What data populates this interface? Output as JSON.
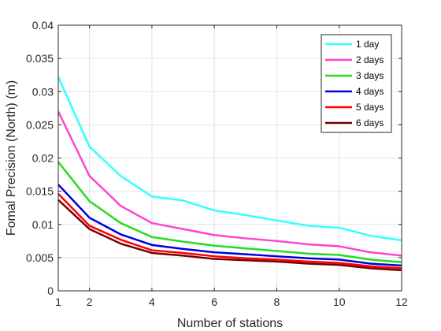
{
  "chart_data": {
    "type": "line",
    "title": "",
    "xlabel": "Number of stations",
    "ylabel": "Fomal Precision (North) (m)",
    "xlim": [
      1,
      12
    ],
    "ylim": [
      0,
      0.04
    ],
    "xticks": [
      1,
      2,
      4,
      6,
      8,
      10,
      12
    ],
    "yticks": [
      0,
      0.005,
      0.01,
      0.015,
      0.02,
      0.025,
      0.03,
      0.035,
      0.04
    ],
    "xtick_labels": [
      "1",
      "2",
      "4",
      "6",
      "8",
      "10",
      "12"
    ],
    "ytick_labels": [
      "0",
      "0.005",
      "0.01",
      "0.015",
      "0.02",
      "0.025",
      "0.03",
      "0.035",
      "0.04"
    ],
    "grid": true,
    "legend_position": "top-right",
    "x": [
      1,
      2,
      3,
      4,
      5,
      6,
      7,
      8,
      9,
      10,
      11,
      12
    ],
    "series": [
      {
        "name": "1 day",
        "color": "#33FFFF",
        "values": [
          0.0322,
          0.0217,
          0.0173,
          0.0142,
          0.0136,
          0.0121,
          0.0114,
          0.0106,
          0.0098,
          0.0095,
          0.0083,
          0.0076
        ]
      },
      {
        "name": "2 days",
        "color": "#FF44CC",
        "values": [
          0.027,
          0.0173,
          0.0128,
          0.0102,
          0.0093,
          0.0084,
          0.0079,
          0.0075,
          0.007,
          0.0067,
          0.0058,
          0.0053
        ]
      },
      {
        "name": "3 days",
        "color": "#22DD22",
        "values": [
          0.0194,
          0.0135,
          0.0102,
          0.0081,
          0.0074,
          0.0068,
          0.0064,
          0.006,
          0.0056,
          0.0054,
          0.0047,
          0.0043
        ]
      },
      {
        "name": "4 days",
        "color": "#0000DD",
        "values": [
          0.016,
          0.011,
          0.0085,
          0.0069,
          0.0063,
          0.0058,
          0.0055,
          0.0052,
          0.0049,
          0.0047,
          0.0041,
          0.0038
        ]
      },
      {
        "name": "5 days",
        "color": "#FF0000",
        "values": [
          0.0146,
          0.0098,
          0.0077,
          0.0061,
          0.0057,
          0.0052,
          0.0049,
          0.0047,
          0.0044,
          0.0042,
          0.0037,
          0.0034
        ]
      },
      {
        "name": "6 days",
        "color": "#770000",
        "values": [
          0.0137,
          0.0093,
          0.0071,
          0.0057,
          0.0053,
          0.0048,
          0.0046,
          0.0044,
          0.0041,
          0.0039,
          0.0034,
          0.0031
        ]
      }
    ]
  }
}
